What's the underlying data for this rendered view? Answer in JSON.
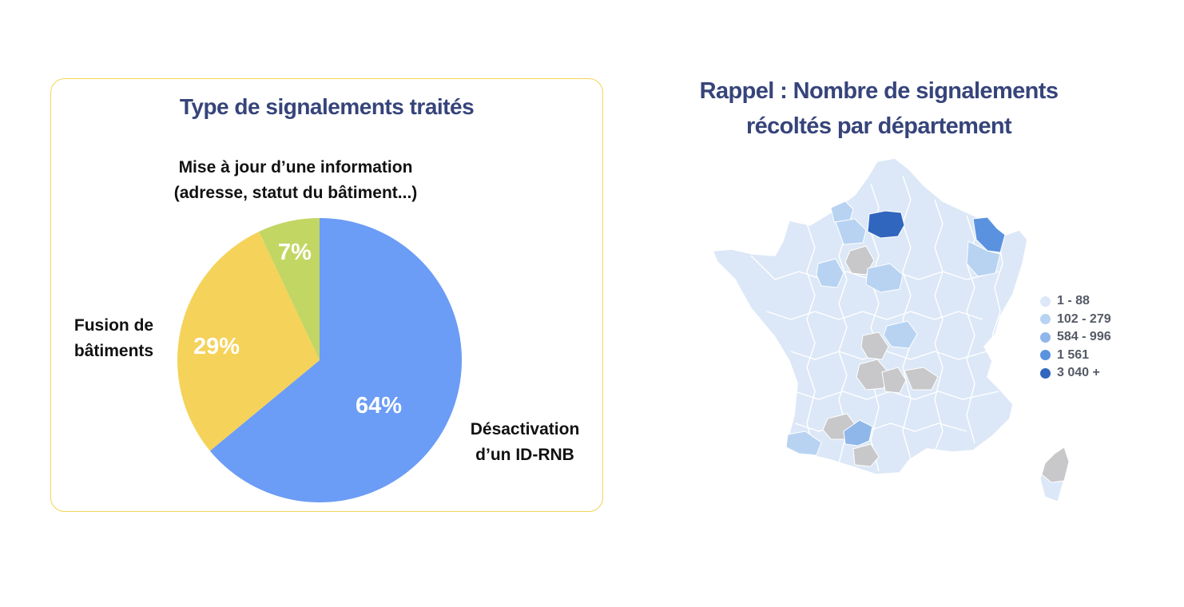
{
  "left_panel": {
    "title": "Type de signalements traités",
    "chart_data": {
      "type": "pie",
      "title": "Type de signalements traités",
      "slices": [
        {
          "label": "Désactivation d’un ID-RNB",
          "value": 64,
          "display": "64%",
          "color": "#6b9cf6"
        },
        {
          "label": "Fusion de bâtiments",
          "value": 29,
          "display": "29%",
          "color": "#f5d25a"
        },
        {
          "label": "Mise à jour d’une information (adresse, statut du bâtiment...)",
          "value": 7,
          "display": "7%",
          "color": "#c2d663"
        }
      ]
    },
    "labels": {
      "mise_line1": "Mise à jour d’une information",
      "mise_line2": "(adresse, statut du bâtiment...)",
      "fusion_line1": "Fusion de",
      "fusion_line2": "bâtiments",
      "desact_line1": "Désactivation",
      "desact_line2": "d’un ID-RNB"
    }
  },
  "right_panel": {
    "title_line1": "Rappel : Nombre de signalements",
    "title_line2": "récoltés par département",
    "legend": [
      {
        "label": "1 - 88",
        "color": "#dce8f7"
      },
      {
        "label": "102 - 279",
        "color": "#b8d3f2"
      },
      {
        "label": "584 - 996",
        "color": "#8fb7ea"
      },
      {
        "label": "1 561",
        "color": "#5a92e0"
      },
      {
        "label": "3 040 +",
        "color": "#3166bf"
      }
    ],
    "no_data_color": "#c8c8ca"
  }
}
